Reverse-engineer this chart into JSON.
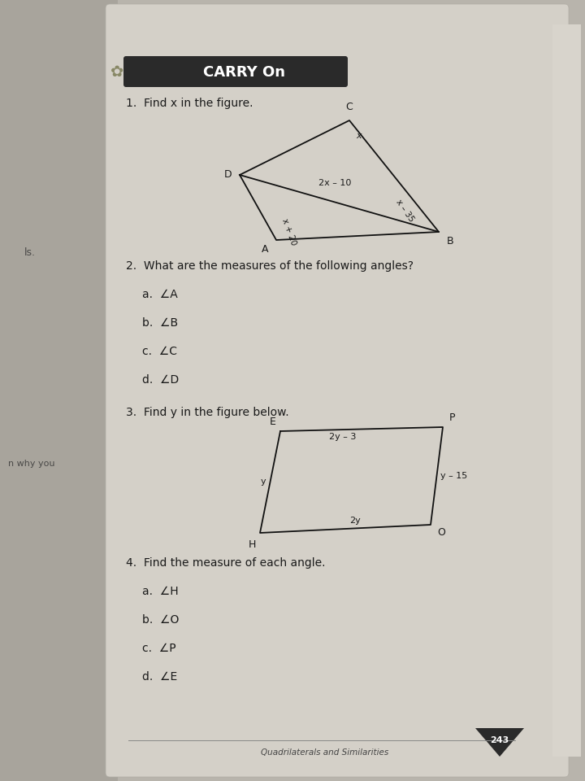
{
  "bg_left_color": "#b8b4ac",
  "bg_right_color": "#c8c4bc",
  "page_color": "#d4d0c8",
  "title_text": "CARRY On",
  "title_bg": "#2a2a2a",
  "title_text_color": "#ffffff",
  "q1_text": "1.  Find x in the figure.",
  "q2_text": "2.  What are the measures of the following angles?",
  "q2a": "a.  ∠A",
  "q2b": "b.  ∠B",
  "q2c": "c.  ∠C",
  "q2d": "d.  ∠D",
  "q3_text": "3.  Find y in the figure below.",
  "q4_text": "4.  Find the measure of each angle.",
  "q4a": "a.  ∠H",
  "q4b": "b.  ∠O",
  "q4c": "c.  ∠P",
  "q4d": "d.  ∠E",
  "footer_label": "Quadrilaterals and Similarities",
  "footer_num": "243",
  "fig1_label_diag": "2x – 10",
  "fig1_label_angA": "x + 20",
  "fig1_label_angB": "x – 35",
  "fig1_label_angC": "x",
  "fig2_label_top": "2y – 3",
  "fig2_label_right": "y – 15",
  "fig2_label_bottom": "2y",
  "fig2_label_left": "y",
  "text_color": "#1a1a1a",
  "line_color": "#111111",
  "margin_text1": "ls.",
  "margin_text2": "n why you"
}
